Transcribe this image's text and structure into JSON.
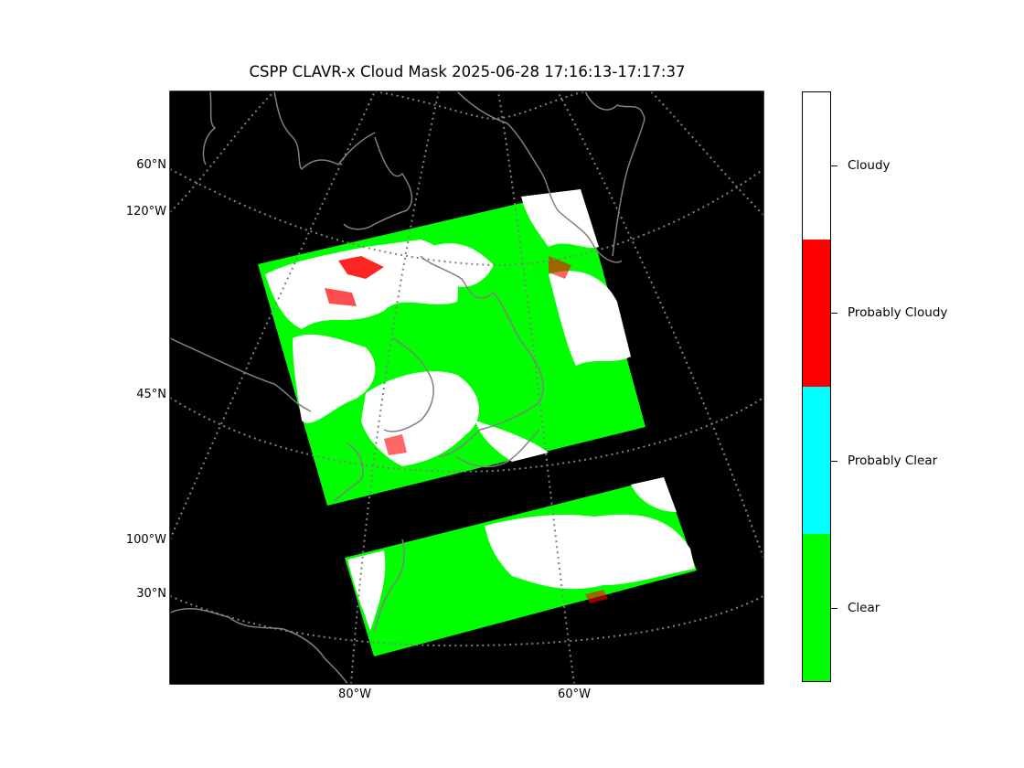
{
  "title": "CSPP CLAVR-x Cloud Mask 2025-06-28 17:16:13-17:17:37",
  "map": {
    "background_color": "#000000",
    "gridline_color": "#808080",
    "coastline_color": "#808080",
    "gridlines": "dotted",
    "left_labels": [
      "60°N",
      "120°W",
      "45°N",
      "100°W",
      "30°N"
    ],
    "bottom_labels": [
      "80°W",
      "60°W"
    ],
    "swaths": [
      "north-swath",
      "south-swath"
    ]
  },
  "colorbar": {
    "categories": [
      {
        "label": "Cloudy",
        "color": "#ffffff"
      },
      {
        "label": "Probably Cloudy",
        "color": "#ff0000"
      },
      {
        "label": "Probably Clear",
        "color": "#00ffff"
      },
      {
        "label": "Clear",
        "color": "#00ff00"
      }
    ]
  }
}
